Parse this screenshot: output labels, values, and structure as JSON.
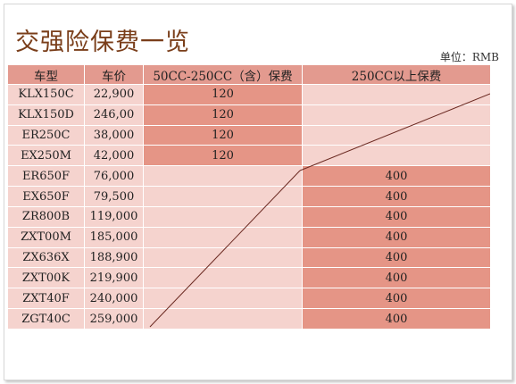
{
  "title": "交强险保费一览",
  "unit_note": "单位：RMB",
  "table": {
    "headers": [
      "车型",
      "车价",
      "50CC-250CC（含）保费",
      "250CC以上保费"
    ],
    "rows": [
      {
        "model": "KLX150C",
        "price": "22,900",
        "small": "120",
        "large": ""
      },
      {
        "model": "KLX150D",
        "price": "246,00",
        "small": "120",
        "large": ""
      },
      {
        "model": "ER250C",
        "price": "38,000",
        "small": "120",
        "large": ""
      },
      {
        "model": "EX250M",
        "price": "42,000",
        "small": "120",
        "large": ""
      },
      {
        "model": "ER650F",
        "price": "76,000",
        "small": "",
        "large": "400"
      },
      {
        "model": "EX650F",
        "price": "79,500",
        "small": "",
        "large": "400"
      },
      {
        "model": "ZR800B",
        "price": "119,000",
        "small": "",
        "large": "400"
      },
      {
        "model": "ZXT00M",
        "price": "185,000",
        "small": "",
        "large": "400"
      },
      {
        "model": "ZX636X",
        "price": "188,900",
        "small": "",
        "large": "400"
      },
      {
        "model": "ZXT00K",
        "price": "219,900",
        "small": "",
        "large": "400"
      },
      {
        "model": "ZXT40F",
        "price": "240,000",
        "small": "",
        "large": "400"
      },
      {
        "model": "ZGT40C",
        "price": "259,000",
        "small": "",
        "large": "400"
      }
    ]
  },
  "colors": {
    "header": "#e39a8f",
    "cell_light": "#f5d3ce",
    "cell_fee": "#e59586",
    "title": "#7a3e1a"
  }
}
